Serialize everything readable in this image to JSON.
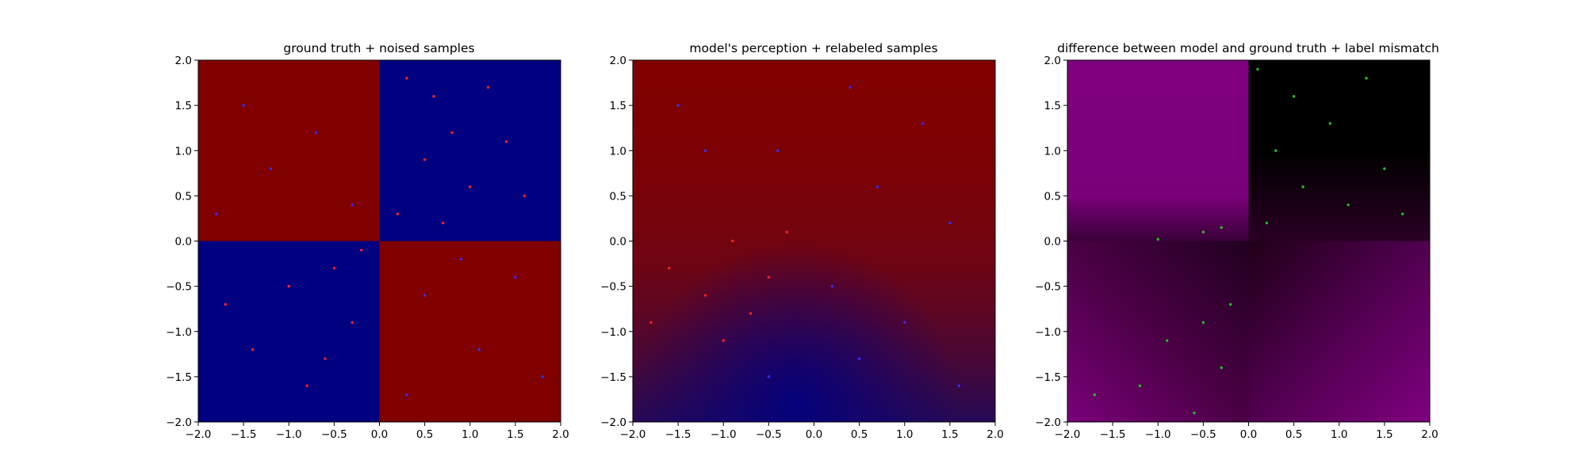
{
  "chart_data": [
    {
      "type": "scatter",
      "title": "ground truth + noised samples",
      "xlabel": "",
      "ylabel": "",
      "xlim": [
        -2.0,
        2.0
      ],
      "ylim": [
        -2.0,
        2.0
      ],
      "xticks": [
        "−2.0",
        "−1.5",
        "−1.0",
        "−0.5",
        "0.0",
        "0.5",
        "1.0",
        "1.5",
        "2.0"
      ],
      "yticks": [
        "−2.0",
        "−1.5",
        "−1.0",
        "−0.5",
        "0.0",
        "0.5",
        "1.0",
        "1.5",
        "2.0"
      ],
      "background": "checkerboard: red where x<0,y>0 and x>0,y<0; blue where x>0,y>0 and x<0,y<0",
      "series": [
        {
          "color": "#ff2020",
          "points": [
            [
              0.3,
              1.8
            ],
            [
              0.6,
              1.6
            ],
            [
              1.2,
              1.7
            ],
            [
              0.8,
              1.2
            ],
            [
              1.4,
              1.1
            ],
            [
              0.5,
              0.9
            ],
            [
              1.0,
              0.6
            ],
            [
              0.2,
              0.3
            ],
            [
              1.6,
              0.5
            ],
            [
              0.7,
              0.2
            ],
            [
              -0.5,
              -0.3
            ],
            [
              -1.0,
              -0.5
            ],
            [
              -0.3,
              -0.9
            ],
            [
              -1.4,
              -1.2
            ],
            [
              -0.8,
              -1.6
            ],
            [
              -0.2,
              -0.1
            ],
            [
              -1.7,
              -0.7
            ],
            [
              -0.6,
              -1.3
            ]
          ]
        },
        {
          "color": "#3030ff",
          "points": [
            [
              -1.5,
              1.5
            ],
            [
              -0.7,
              1.2
            ],
            [
              -0.3,
              0.4
            ],
            [
              -1.2,
              0.8
            ],
            [
              -1.8,
              0.3
            ],
            [
              0.5,
              -0.6
            ],
            [
              1.1,
              -1.2
            ],
            [
              1.5,
              -0.4
            ],
            [
              0.3,
              -1.7
            ],
            [
              1.8,
              -1.5
            ],
            [
              0.9,
              -0.2
            ]
          ]
        }
      ]
    },
    {
      "type": "scatter",
      "title": "model's perception + relabeled samples",
      "xlabel": "",
      "ylabel": "",
      "xlim": [
        -2.0,
        2.0
      ],
      "ylim": [
        -2.0,
        2.0
      ],
      "xticks": [
        "−2.0",
        "−1.5",
        "−1.0",
        "−0.5",
        "0.0",
        "0.5",
        "1.0",
        "1.5",
        "2.0"
      ],
      "yticks": [
        "−2.0",
        "−1.5",
        "−1.0",
        "−0.5",
        "0.0",
        "0.5",
        "1.0",
        "1.5",
        "2.0"
      ],
      "background": "mostly red; blue-tinted dark region toward bottom-center",
      "series": [
        {
          "color": "#ff2020",
          "points": [
            [
              -0.9,
              0.0
            ],
            [
              -0.5,
              -0.4
            ],
            [
              -1.2,
              -0.6
            ],
            [
              -0.7,
              -0.8
            ],
            [
              -1.6,
              -0.3
            ],
            [
              -0.3,
              0.1
            ],
            [
              -1.0,
              -1.1
            ],
            [
              -1.8,
              -0.9
            ]
          ]
        },
        {
          "color": "#3030ff",
          "points": [
            [
              -1.5,
              1.5
            ],
            [
              0.4,
              1.7
            ],
            [
              1.2,
              1.3
            ],
            [
              -0.4,
              1.0
            ],
            [
              0.7,
              0.6
            ],
            [
              1.5,
              0.2
            ],
            [
              0.2,
              -0.5
            ],
            [
              1.0,
              -0.9
            ],
            [
              -0.5,
              -1.5
            ],
            [
              1.6,
              -1.6
            ],
            [
              0.5,
              -1.3
            ],
            [
              -1.2,
              1.0
            ]
          ]
        }
      ]
    },
    {
      "type": "scatter",
      "title": "difference between model and ground truth + label mismatch",
      "xlabel": "",
      "ylabel": "",
      "xlim": [
        -2.0,
        2.0
      ],
      "ylim": [
        -2.0,
        2.0
      ],
      "xticks": [
        "−2.0",
        "−1.5",
        "−1.0",
        "−0.5",
        "0.0",
        "0.5",
        "1.0",
        "1.5",
        "2.0"
      ],
      "yticks": [
        "−2.0",
        "−1.5",
        "−1.0",
        "−0.5",
        "0.0",
        "0.5",
        "1.0",
        "1.5",
        "2.0"
      ],
      "background": "purple upper-left quadrant; black upper-right; dark purple lower half",
      "series": [
        {
          "color": "#22c022",
          "points": [
            [
              0.1,
              1.9
            ],
            [
              0.5,
              1.6
            ],
            [
              1.3,
              1.8
            ],
            [
              0.9,
              1.3
            ],
            [
              0.3,
              1.0
            ],
            [
              1.5,
              0.8
            ],
            [
              0.6,
              0.6
            ],
            [
              1.1,
              0.4
            ],
            [
              0.2,
              0.2
            ],
            [
              1.7,
              0.3
            ],
            [
              -0.5,
              0.1
            ],
            [
              -0.3,
              0.15
            ],
            [
              -1.0,
              0.02
            ],
            [
              -0.2,
              -0.7
            ],
            [
              -0.5,
              -0.9
            ],
            [
              -0.9,
              -1.1
            ],
            [
              -0.3,
              -1.4
            ],
            [
              -1.2,
              -1.6
            ],
            [
              -1.7,
              -1.7
            ],
            [
              -0.6,
              -1.9
            ]
          ]
        }
      ]
    }
  ]
}
